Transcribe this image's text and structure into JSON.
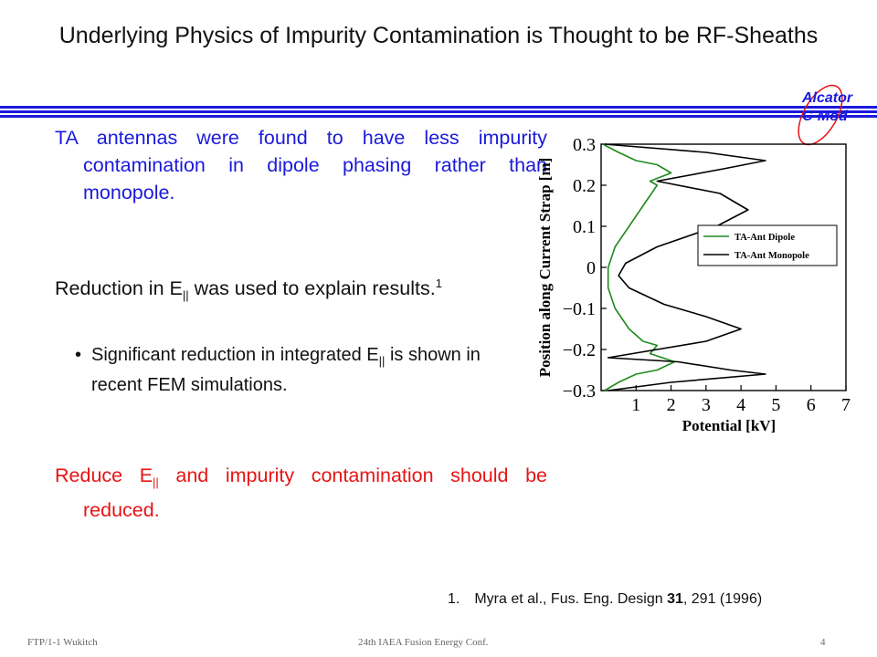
{
  "title": "Underlying Physics of Impurity Contamination is Thought to be RF-Sheaths",
  "logo": {
    "line1": "Alcator",
    "line2": "C-Mod"
  },
  "colors": {
    "blue": "#1a1adb",
    "red": "#e61414",
    "dipole": "#1e8a1e",
    "monopole": "#000000",
    "rule": "#1a1adb"
  },
  "para1": "TA antennas were found to have less impurity contamination in dipole phasing rather than monopole.",
  "para2": {
    "pre": "Reduction in E",
    "sub": "||",
    "post": " was used to explain results.",
    "sup": "1"
  },
  "bullet": {
    "pre": "Significant reduction in integrated E",
    "sub": "||",
    "post": " is shown in recent FEM simulations."
  },
  "para3": {
    "pre": "Reduce E",
    "sub": "||",
    "post": " and impurity contamination should be reduced."
  },
  "reference": {
    "num": "1.",
    "pre": "Myra et al., Fus. Eng. Design ",
    "vol": "31",
    "post": ", 291 (1996)"
  },
  "footer": {
    "left": "FTP/1-1 Wukitch",
    "center": "24th IAEA Fusion Energy Conf.",
    "page": "4"
  },
  "chart_data": {
    "type": "line",
    "xlabel": "Potential [kV]",
    "ylabel": "Position along Current Strap [m]",
    "xlim": [
      0,
      7
    ],
    "ylim": [
      -0.3,
      0.3
    ],
    "xticks": [
      "1",
      "2",
      "3",
      "4",
      "5",
      "6",
      "7"
    ],
    "yticks": [
      "0.3",
      "0.2",
      "0.1",
      "0",
      "−0.1",
      "−0.2",
      "−0.3"
    ],
    "legend_position": "center-right",
    "series": [
      {
        "name": "TA-Ant Dipole",
        "x": [
          0.05,
          0.5,
          1.0,
          1.6,
          2.0,
          1.4,
          1.6,
          1.2,
          0.8,
          0.4,
          0.2,
          0.2,
          0.4,
          0.8,
          1.2,
          1.6,
          1.4,
          2.1,
          1.6,
          1.0,
          0.5,
          0.1
        ],
        "y": [
          0.3,
          0.28,
          0.26,
          0.25,
          0.23,
          0.21,
          0.2,
          0.15,
          0.1,
          0.05,
          0.0,
          -0.05,
          -0.1,
          -0.15,
          -0.18,
          -0.19,
          -0.21,
          -0.23,
          -0.25,
          -0.26,
          -0.28,
          -0.3
        ]
      },
      {
        "name": "TA-Ant Monopole",
        "x": [
          0.1,
          3.0,
          4.7,
          3.5,
          1.6,
          3.4,
          4.2,
          3.3,
          1.6,
          0.7,
          0.5,
          0.8,
          1.8,
          3.0,
          4.0,
          3.0,
          0.2,
          2.2,
          3.7,
          4.7,
          2.0,
          0.2
        ],
        "y": [
          0.3,
          0.28,
          0.26,
          0.24,
          0.21,
          0.18,
          0.14,
          0.1,
          0.05,
          0.01,
          -0.02,
          -0.05,
          -0.09,
          -0.12,
          -0.15,
          -0.18,
          -0.22,
          -0.23,
          -0.25,
          -0.26,
          -0.28,
          -0.3
        ]
      }
    ]
  }
}
